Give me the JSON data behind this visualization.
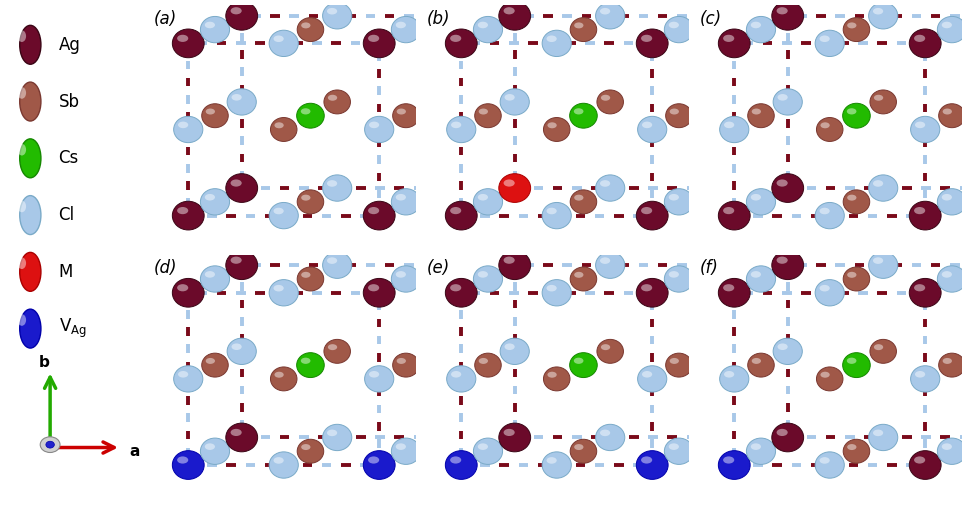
{
  "fig_width": 9.75,
  "fig_height": 5.09,
  "bg_color": "#ffffff",
  "legend_items": [
    {
      "label": "Ag",
      "color": "#6b0a2a",
      "edge": "#3a0515",
      "shine": true
    },
    {
      "label": "Sb",
      "color": "#a05848",
      "edge": "#7a3830",
      "shine": true
    },
    {
      "label": "Cs",
      "color": "#22bb00",
      "edge": "#158800",
      "shine": true
    },
    {
      "label": "Cl",
      "color": "#a8c8e8",
      "edge": "#7aaac8",
      "shine": true
    },
    {
      "label": "M",
      "color": "#dd1111",
      "edge": "#aa0000",
      "shine": true
    },
    {
      "label": "V_Ag",
      "color": "#1a1acc",
      "edge": "#0000aa",
      "shine": true
    }
  ],
  "panel_labels": [
    "(a)",
    "(b)",
    "(c)",
    "(d)",
    "(e)",
    "(f)"
  ],
  "colors": {
    "Ag": "#6b0a2a",
    "Ag_e": "#3a0515",
    "Sb": "#a05848",
    "Sb_e": "#7a3830",
    "Cs": "#22bb00",
    "Cs_e": "#158800",
    "Cl": "#a8c8e8",
    "Cl_e": "#7aaac8",
    "M": "#dd1111",
    "M_e": "#aa0000",
    "VAg": "#1a1acc",
    "VAg_e": "#0000aa"
  },
  "bond_dark": "#7a0a1a",
  "bond_light": "#a8c8e8",
  "bond_lw": 2.8
}
